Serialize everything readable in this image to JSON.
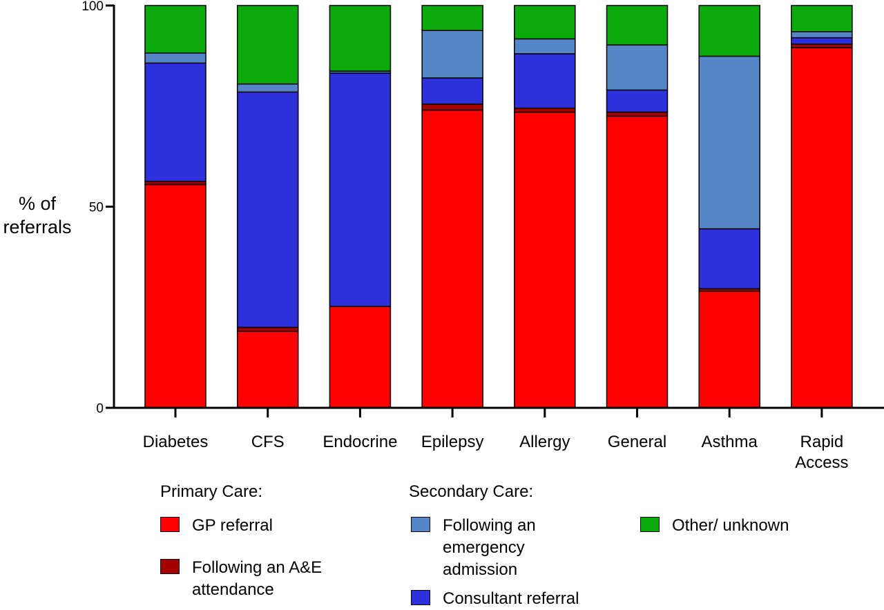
{
  "chart_data": {
    "type": "bar",
    "stacked": true,
    "ylabel": "% of referrals",
    "ylabel_lines": [
      "% of",
      "referrals"
    ],
    "ylim": [
      0,
      100
    ],
    "yticks": [
      "0",
      "50",
      "100"
    ],
    "xlabel": "",
    "categories": [
      "Diabetes",
      "CFS",
      "Endocrine",
      "Epilepsy",
      "Allergy",
      "General",
      "Asthma",
      "Rapid Access"
    ],
    "category_lines": [
      [
        "Diabetes"
      ],
      [
        "CFS"
      ],
      [
        "Endocrine"
      ],
      [
        "Epilepsy"
      ],
      [
        "Allergy"
      ],
      [
        "General"
      ],
      [
        "Asthma"
      ],
      [
        "Rapid",
        "Access"
      ]
    ],
    "series": [
      {
        "name": "GP referral",
        "color": "#ff0000",
        "values": [
          55.5,
          19.0,
          25.2,
          74.0,
          73.5,
          72.5,
          29.0,
          89.5
        ]
      },
      {
        "name": "Following an A&E attendance",
        "color": "#a50000",
        "values": [
          0.8,
          1.0,
          0.0,
          1.5,
          1.0,
          1.0,
          0.6,
          0.9
        ]
      },
      {
        "name": "Consultant referral",
        "color": "#2e31d9",
        "values": [
          29.4,
          58.5,
          58.0,
          6.5,
          13.5,
          5.5,
          14.9,
          1.6
        ]
      },
      {
        "name": "Following an emergency admission",
        "color": "#5586c8",
        "values": [
          2.5,
          2.0,
          0.5,
          11.8,
          3.7,
          11.2,
          42.9,
          1.5
        ]
      },
      {
        "name": "Other/ unknown",
        "color": "#0aaa0a",
        "values": [
          11.8,
          19.5,
          16.3,
          6.2,
          8.3,
          9.8,
          12.6,
          6.5
        ]
      }
    ],
    "legend": {
      "position": "bottom",
      "groups": [
        {
          "heading": "Primary Care:",
          "items": [
            {
              "lines": [
                "GP referral"
              ],
              "color": "#ff0000"
            },
            {
              "lines": [
                "Following an A&E",
                "attendance"
              ],
              "color": "#a50000"
            }
          ]
        },
        {
          "heading": "Secondary Care:",
          "items": [
            {
              "lines": [
                "Following an",
                "emergency",
                "admission"
              ],
              "color": "#5586c8"
            },
            {
              "lines": [
                "Consultant referral"
              ],
              "color": "#2e31d9"
            }
          ]
        },
        {
          "heading": "",
          "items": [
            {
              "lines": [
                "Other/ unknown"
              ],
              "color": "#0aaa0a"
            }
          ]
        }
      ]
    },
    "grid": false
  }
}
